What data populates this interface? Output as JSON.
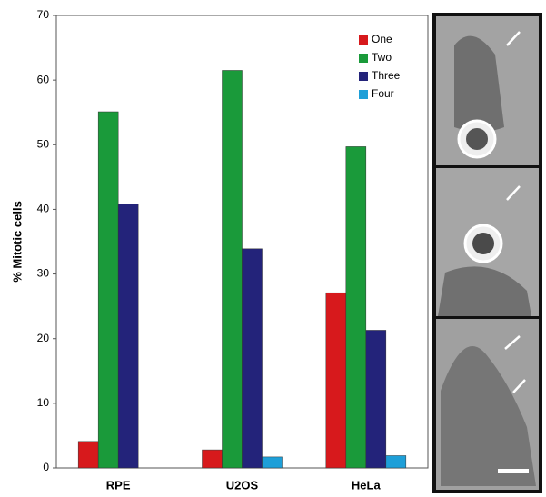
{
  "chart_data": {
    "type": "bar",
    "ylabel": "% Mitotic cells",
    "categories": [
      "RPE",
      "U2OS",
      "HeLa"
    ],
    "series": [
      {
        "name": "One",
        "color": "#d7191c",
        "values": [
          4.1,
          2.8,
          27.1
        ]
      },
      {
        "name": "Two",
        "color": "#1a9a3a",
        "values": [
          55.1,
          61.5,
          49.7
        ]
      },
      {
        "name": "Three",
        "color": "#23237a",
        "values": [
          40.8,
          33.9,
          21.3
        ]
      },
      {
        "name": "Four",
        "color": "#1e9fd8",
        "values": [
          0,
          1.7,
          1.9
        ]
      }
    ],
    "ylim": [
      0,
      70
    ],
    "yticks": [
      0,
      10,
      20,
      30,
      40,
      50,
      60,
      70
    ],
    "legend": "upper right"
  }
}
